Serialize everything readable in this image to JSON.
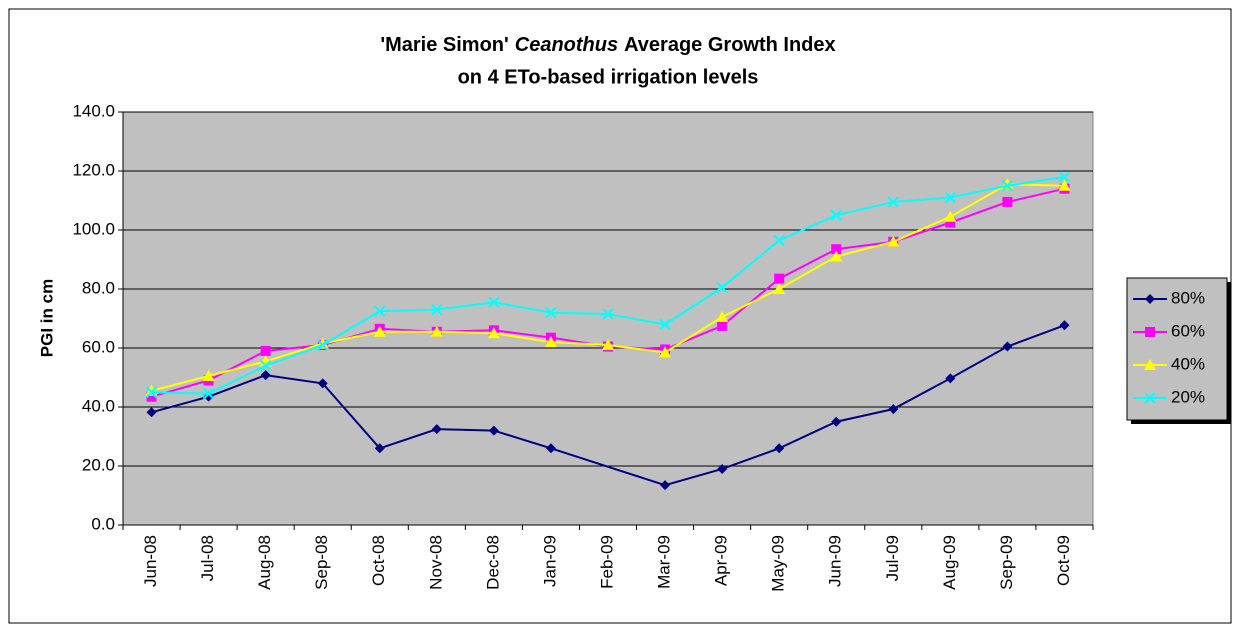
{
  "chart_data": {
    "type": "line",
    "title": [
      "'Marie Simon'",
      "Ceanothus",
      "Average Growth Index",
      "on 4 ETo-based irrigation levels"
    ],
    "ylabel": "PGI in cm",
    "categories": [
      "Jun-08",
      "Jul-08",
      "Aug-08",
      "Sep-08",
      "Oct-08",
      "Nov-08",
      "Dec-08",
      "Jan-09",
      "Feb-09",
      "Mar-09",
      "Apr-09",
      "May-09",
      "Jun-09",
      "Jul-09",
      "Aug-09",
      "Sep-09",
      "Oct-09"
    ],
    "series": [
      {
        "name": "80%",
        "color": "#000080",
        "marker": "diamond",
        "values": [
          38.2,
          43.5,
          50.8,
          48,
          26,
          32.5,
          32,
          26,
          null,
          13.5,
          19,
          26,
          35,
          39.3,
          49.7,
          60.5,
          67.7
        ]
      },
      {
        "name": "60%",
        "color": "#ff00ff",
        "marker": "square",
        "values": [
          43.5,
          49,
          59,
          61,
          66.5,
          65.5,
          66,
          63.5,
          60.5,
          59.5,
          67.5,
          83.5,
          93.5,
          96,
          102.5,
          109.5,
          114
        ]
      },
      {
        "name": "40%",
        "color": "#ffff00",
        "marker": "triangle",
        "values": [
          45.5,
          50.5,
          55.5,
          61.5,
          65.5,
          65.5,
          65,
          62,
          61,
          58.5,
          70.5,
          80,
          91,
          96,
          104.5,
          115.5,
          115
        ]
      },
      {
        "name": "20%",
        "color": "#00ffff",
        "marker": "x",
        "values": [
          45,
          44.5,
          54,
          61,
          72.5,
          73,
          75.5,
          72,
          71.5,
          68,
          80.5,
          96.5,
          105,
          109.5,
          111,
          115,
          118
        ]
      }
    ],
    "ylim": [
      0,
      140
    ],
    "yticks": [
      {
        "value": 0,
        "label": "0.0"
      },
      {
        "value": 20,
        "label": "20.0"
      },
      {
        "value": 40,
        "label": "40.0"
      },
      {
        "value": 60,
        "label": "60.0"
      },
      {
        "value": 80,
        "label": "80.0"
      },
      {
        "value": 100,
        "label": "100.0"
      },
      {
        "value": 120,
        "label": "120.0"
      },
      {
        "value": 140,
        "label": "140.0"
      }
    ],
    "grid": true,
    "plot_background": "#c0c0c0",
    "legend": "right",
    "connect_gaps": true
  }
}
